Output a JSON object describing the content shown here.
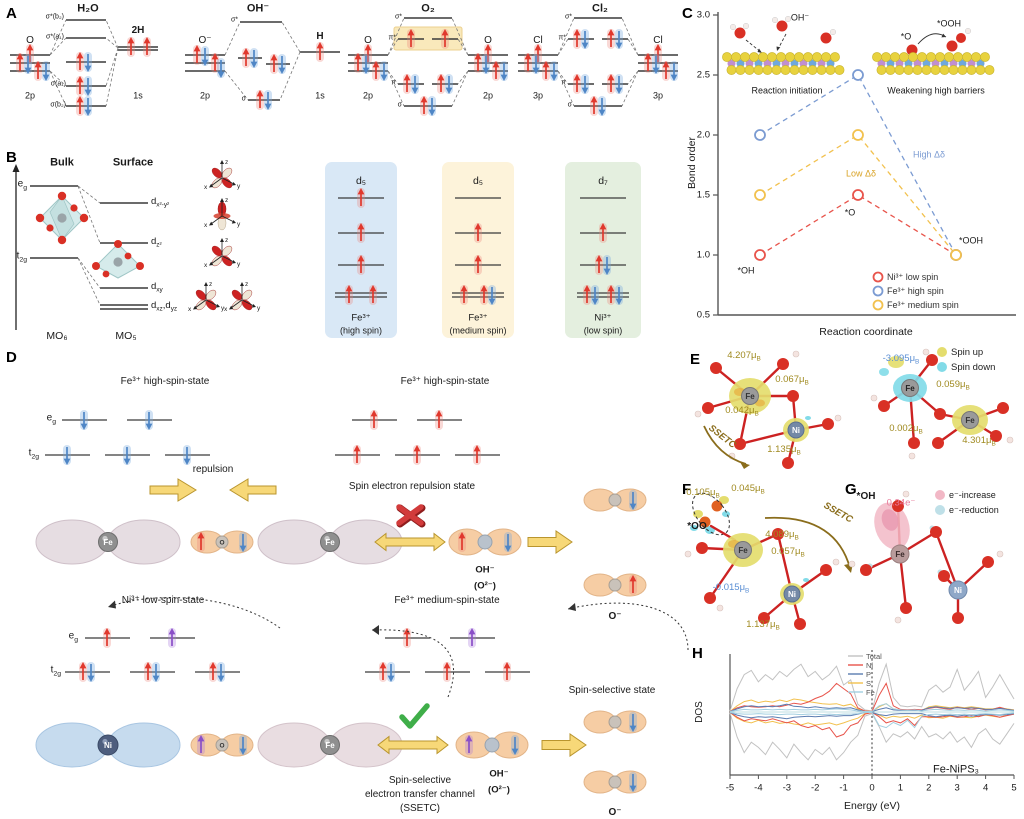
{
  "panels": {
    "A": {
      "label": "A",
      "diagrams": [
        {
          "title": "H₂O",
          "left": "O",
          "left_orb": "2p",
          "right": "2H",
          "right_orb": "1s",
          "levels": {
            "l1": "σ*(b₂)",
            "l2": "σ*(a₁)",
            "l3": "σ(a₁)",
            "l4": "σ(b₂)"
          }
        },
        {
          "title": "OH⁻",
          "left": "O⁻",
          "left_orb": "2p",
          "right": "H",
          "right_orb": "1s",
          "levels": {
            "l1": "σ*",
            "l4": "σ"
          }
        },
        {
          "title": "O₂",
          "left": "O",
          "left_orb": "2p",
          "right": "O",
          "right_orb": "2p",
          "levels": {
            "l1": "σ*",
            "l2": "π*",
            "l3": "π",
            "l4": "σ"
          }
        },
        {
          "title": "Cl₂",
          "left": "Cl",
          "left_orb": "3p",
          "right": "Cl",
          "right_orb": "3p",
          "levels": {
            "l1": "σ*",
            "l2": "π*",
            "l3": "π",
            "l4": "σ"
          }
        }
      ]
    },
    "B": {
      "label": "B",
      "bulk": "Bulk",
      "surface": "Surface",
      "eg": "e<sub>g</sub>",
      "t2g": "t<sub>2g</sub>",
      "d1": "d<sub>x²-y²</sub>",
      "d2": "d<sub>z²</sub>",
      "d3": "d<sub>xy</sub>",
      "d4": "d<sub>xz</sub>,d<sub>yz</sub>",
      "mo6": "MO₆",
      "mo5": "MO₅",
      "axes": {
        "x": "x",
        "y": "y",
        "z": "z"
      },
      "cards": [
        {
          "title": "d₅",
          "ion": "Fe³⁺",
          "state": "(high spin)",
          "bg": "#d9e8f6"
        },
        {
          "title": "d₅",
          "ion": "Fe³⁺",
          "state": "(medium spin)",
          "bg": "#fdf3da"
        },
        {
          "title": "d₇",
          "ion": "Ni³⁺",
          "state": "(low spin)",
          "bg": "#e4efdf"
        }
      ]
    },
    "C": {
      "label": "C",
      "chart_data": {
        "type": "scatter",
        "x_categories": [
          "*OH",
          "*O",
          "*OOH"
        ],
        "series": [
          {
            "name": "Ni³⁺ low spin",
            "color": "#e8544b",
            "values": [
              1.0,
              1.5,
              1.0
            ]
          },
          {
            "name": "Fe³⁺ high spin",
            "color": "#7b9bd2",
            "values": [
              2.0,
              2.5,
              1.0
            ]
          },
          {
            "name": "Fe³⁺ medium spin",
            "color": "#f2c14e",
            "values": [
              1.5,
              2.0,
              1.0
            ]
          }
        ],
        "ylabel": "Bond order",
        "xlabel": "Reaction coordinate",
        "ylim": [
          0.5,
          3.0
        ],
        "yticks": [
          3.0,
          2.5,
          2.0,
          1.5,
          1.0,
          0.5
        ],
        "grid": false,
        "legend_position": "lower right",
        "annotations": {
          "p1": "*OH",
          "p2": "*O",
          "p3": "*OOH",
          "high": "High Δδ",
          "low": "Low Δδ"
        }
      },
      "insets": [
        {
          "caption": "Reaction initiation",
          "mol": "OH⁻"
        },
        {
          "caption": "Weakening high barriers",
          "mol_left": "*O",
          "mol_right": "*OOH"
        }
      ]
    },
    "D": {
      "label": "D",
      "top": {
        "left_title": "Fe³⁺ high-spin-state",
        "right_title": "Fe³⁺ high-spin-state",
        "eg": "e<sub>g</sub>",
        "t2g": "t<sub>2g</sub>",
        "repulsion": "repulsion",
        "state_label": "Spin electron repulsion state",
        "fe": "Fe",
        "o": "O",
        "ohm": "OH⁻",
        "o2m": "(O²⁻)",
        "om": "O⁻"
      },
      "bottom": {
        "left_title": "Ni³⁺ low-spin-state",
        "right_title": "Fe³⁺ medium-spin-state",
        "eg": "e<sub>g</sub>",
        "t2g": "t<sub>2g</sub>",
        "channel1": "Spin-selective",
        "channel2": "electron transfer channel",
        "channel3": "(SSETC)",
        "state_label": "Spin-selective state",
        "ni": "Ni",
        "fe": "Fe",
        "o": "O",
        "ohm": "OH⁻",
        "o2m": "(O²⁻)",
        "om": "O⁻"
      }
    },
    "E": {
      "label": "E",
      "legend": [
        {
          "label": "Spin up",
          "color": "#e4dd6e"
        },
        {
          "label": "Spin down",
          "color": "#82dbe8"
        }
      ],
      "left": {
        "fe": "Fe",
        "ni": "Ni",
        "v1": "4.207μ<sub>B</sub>",
        "v2": "0.067μ<sub>B</sub>",
        "v3": "0.042μ<sub>B</sub>",
        "v4": "1.135μ<sub>B</sub>",
        "arrow": "SSETC"
      },
      "right": {
        "fe1": "Fe",
        "fe2": "Fe",
        "v1": "-3.095μ<sub>B</sub>",
        "v2": "0.059μ<sub>B</sub>",
        "v3": "0.002μ<sub>B</sub>",
        "v4": "4.301μ<sub>B</sub>"
      }
    },
    "F": {
      "label": "F",
      "fe": "Fe",
      "ni": "Ni",
      "oo": "*OO",
      "arrow": "SSETC",
      "v1": "0.105μ<sub>B</sub>",
      "v2": "0.045μ<sub>B</sub>",
      "v3": "4.089μ<sub>B</sub>",
      "v4": "0.057μ<sub>B</sub>",
      "v5": "-0.015μ<sub>B</sub>",
      "v6": "1.137μ<sub>B</sub>"
    },
    "G": {
      "label": "G",
      "fe": "Fe",
      "ni": "Ni",
      "oh": "*OH",
      "v1": "0.34e⁻",
      "legend": [
        {
          "label": "e⁻-increase",
          "color": "#f2b8c6"
        },
        {
          "label": "e⁻-reduction",
          "color": "#bfe0e8"
        }
      ]
    },
    "H": {
      "label": "H",
      "chart_data": {
        "type": "line",
        "title": "Fe-NiPS₃",
        "xlabel": "Energy (eV)",
        "ylabel": "DOS",
        "xlim": [
          -5,
          5
        ],
        "xticks": [
          -5,
          -4,
          -3,
          -2,
          -1,
          0,
          1,
          2,
          3,
          4,
          5
        ],
        "x_start": -5,
        "x_step": 0.25,
        "fermi_line_x": 0,
        "legend_position": "upper middle",
        "series": [
          {
            "name": "Total",
            "color": "#c2c2c2",
            "up": [
              0.02,
              0.45,
              0.72,
              0.8,
              0.58,
              0.72,
              0.62,
              0.78,
              0.68,
              0.82,
              0.92,
              0.68,
              0.78,
              0.62,
              0.72,
              0.88,
              0.52,
              0.62,
              0.15,
              0.04,
              0.02,
              0.55,
              0.92,
              0.28,
              0.12,
              0.1,
              0.12,
              0.1,
              0.42,
              0.52,
              0.38,
              0.48,
              0.82,
              0.42,
              0.58,
              0.78,
              0.28,
              0.48,
              0.72,
              0.48,
              0.25
            ],
            "down": [
              0.02,
              0.48,
              0.78,
              0.58,
              0.68,
              0.82,
              0.58,
              0.72,
              0.88,
              0.62,
              0.78,
              0.92,
              0.72,
              0.82,
              0.68,
              0.92,
              0.78,
              0.58,
              0.45,
              0.08,
              0.03,
              0.28,
              0.58,
              0.42,
              0.48,
              0.38,
              0.52,
              0.28,
              0.48,
              0.42,
              0.52,
              0.38,
              0.58,
              0.48,
              0.68,
              0.42,
              0.32,
              0.52,
              0.62,
              0.42,
              0.22
            ]
          },
          {
            "name": "S",
            "color": "#f2c14e",
            "up": [
              0.01,
              0.12,
              0.2,
              0.23,
              0.18,
              0.21,
              0.19,
              0.23,
              0.2,
              0.25,
              0.23,
              0.2,
              0.18,
              0.16,
              0.15,
              0.16,
              0.12,
              0.15,
              0.06,
              0.02,
              0.01,
              0.1,
              0.16,
              0.06,
              0.04,
              0.03,
              0.04,
              0.03,
              0.1,
              0.12,
              0.1,
              0.08,
              0.1,
              0.08,
              0.1,
              0.08,
              0.06,
              0.06,
              0.08,
              0.06,
              0.04
            ],
            "down": [
              0.01,
              0.12,
              0.18,
              0.21,
              0.16,
              0.21,
              0.18,
              0.22,
              0.2,
              0.23,
              0.25,
              0.21,
              0.25,
              0.23,
              0.21,
              0.25,
              0.21,
              0.16,
              0.12,
              0.03,
              0.01,
              0.06,
              0.12,
              0.08,
              0.1,
              0.08,
              0.12,
              0.06,
              0.11,
              0.1,
              0.12,
              0.08,
              0.1,
              0.1,
              0.11,
              0.08,
              0.06,
              0.08,
              0.1,
              0.06,
              0.04
            ]
          },
          {
            "name": "Ni",
            "color": "#e8544b",
            "up": [
              0.01,
              0.08,
              0.12,
              0.1,
              0.09,
              0.1,
              0.12,
              0.1,
              0.13,
              0.17,
              0.15,
              0.19,
              0.26,
              0.31,
              0.4,
              0.55,
              0.45,
              0.35,
              0.08,
              0.02,
              0.01,
              0.32,
              0.55,
              0.12,
              0.05,
              0.04,
              0.05,
              0.04,
              0.07,
              0.09,
              0.07,
              0.05,
              0.09,
              0.07,
              0.05,
              0.07,
              0.04,
              0.05,
              0.09,
              0.05,
              0.03
            ],
            "down": [
              0.01,
              0.1,
              0.17,
              0.13,
              0.15,
              0.17,
              0.13,
              0.17,
              0.21,
              0.17,
              0.26,
              0.3,
              0.26,
              0.34,
              0.3,
              0.48,
              0.43,
              0.26,
              0.21,
              0.04,
              0.01,
              0.09,
              0.21,
              0.17,
              0.21,
              0.13,
              0.26,
              0.09,
              0.09,
              0.1,
              0.09,
              0.07,
              0.1,
              0.09,
              0.07,
              0.09,
              0.05,
              0.07,
              0.1,
              0.07,
              0.04
            ]
          },
          {
            "name": "P",
            "color": "#5b7db1",
            "up": [
              0.01,
              0.06,
              0.1,
              0.12,
              0.1,
              0.11,
              0.1,
              0.12,
              0.15,
              0.11,
              0.1,
              0.08,
              0.1,
              0.08,
              0.07,
              0.08,
              0.07,
              0.08,
              0.04,
              0.01,
              0.01,
              0.05,
              0.08,
              0.04,
              0.03,
              0.03,
              0.03,
              0.03,
              0.08,
              0.1,
              0.08,
              0.07,
              0.08,
              0.07,
              0.08,
              0.07,
              0.05,
              0.05,
              0.07,
              0.05,
              0.03
            ],
            "down": [
              0.01,
              0.06,
              0.09,
              0.11,
              0.09,
              0.1,
              0.09,
              0.11,
              0.13,
              0.1,
              0.09,
              0.08,
              0.09,
              0.08,
              0.07,
              0.08,
              0.07,
              0.07,
              0.04,
              0.01,
              0.01,
              0.05,
              0.07,
              0.04,
              0.03,
              0.03,
              0.03,
              0.03,
              0.07,
              0.09,
              0.07,
              0.06,
              0.08,
              0.06,
              0.08,
              0.06,
              0.05,
              0.05,
              0.06,
              0.05,
              0.03
            ]
          },
          {
            "name": "Fe",
            "color": "#a3cfe0",
            "up": [
              0.01,
              0.03,
              0.05,
              0.04,
              0.04,
              0.05,
              0.04,
              0.05,
              0.04,
              0.05,
              0.04,
              0.04,
              0.05,
              0.04,
              0.05,
              0.06,
              0.05,
              0.04,
              0.02,
              0.01,
              0.01,
              0.12,
              0.16,
              0.06,
              0.04,
              0.03,
              0.04,
              0.02,
              0.04,
              0.05,
              0.04,
              0.03,
              0.04,
              0.03,
              0.04,
              0.03,
              0.02,
              0.03,
              0.04,
              0.03,
              0.02
            ],
            "down": [
              0.01,
              0.03,
              0.04,
              0.04,
              0.03,
              0.04,
              0.04,
              0.05,
              0.04,
              0.04,
              0.05,
              0.04,
              0.04,
              0.05,
              0.04,
              0.05,
              0.04,
              0.04,
              0.03,
              0.01,
              0.01,
              0.26,
              0.3,
              0.2,
              0.26,
              0.16,
              0.3,
              0.08,
              0.05,
              0.04,
              0.05,
              0.04,
              0.05,
              0.04,
              0.05,
              0.04,
              0.03,
              0.04,
              0.05,
              0.03,
              0.02
            ]
          }
        ]
      }
    }
  }
}
